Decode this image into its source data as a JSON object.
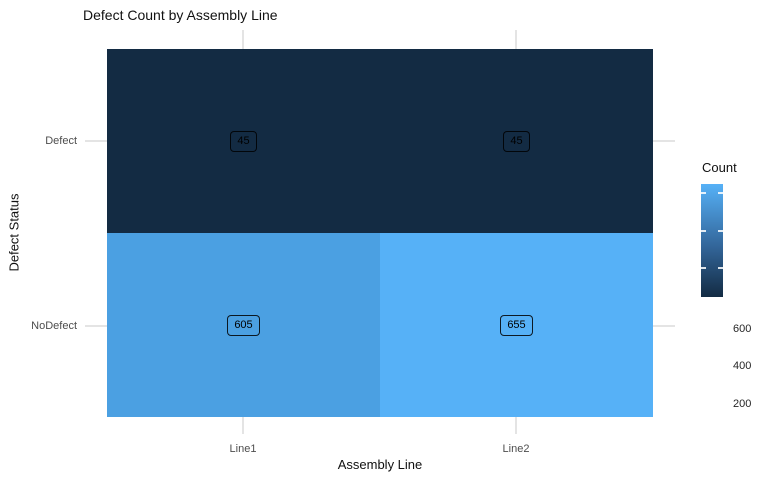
{
  "chart_data": {
    "type": "heatmap",
    "title": "Defect Count by Assembly Line",
    "xlabel": "Assembly Line",
    "ylabel": "Defect Status",
    "x_categories": [
      "Line1",
      "Line2"
    ],
    "y_categories": [
      "Defect",
      "NoDefect"
    ],
    "values": [
      [
        45,
        45
      ],
      [
        605,
        655
      ]
    ],
    "cells": [
      {
        "x": "Line1",
        "y": "Defect",
        "value": "45",
        "color": "#132b43"
      },
      {
        "x": "Line2",
        "y": "Defect",
        "value": "45",
        "color": "#132b43"
      },
      {
        "x": "Line1",
        "y": "NoDefect",
        "value": "605",
        "color": "#4ba0e2"
      },
      {
        "x": "Line2",
        "y": "NoDefect",
        "value": "655",
        "color": "#56b1f7"
      }
    ],
    "legend": {
      "title": "Count",
      "position": "right",
      "ticks": [
        "600",
        "400",
        "200"
      ],
      "range": [
        45,
        655
      ],
      "low_color": "#132b43",
      "mid_color": "#33669a",
      "high_color": "#56b1f7"
    },
    "grid": "on",
    "grid_color": "#e4e4e4",
    "background": "#ffffff"
  }
}
